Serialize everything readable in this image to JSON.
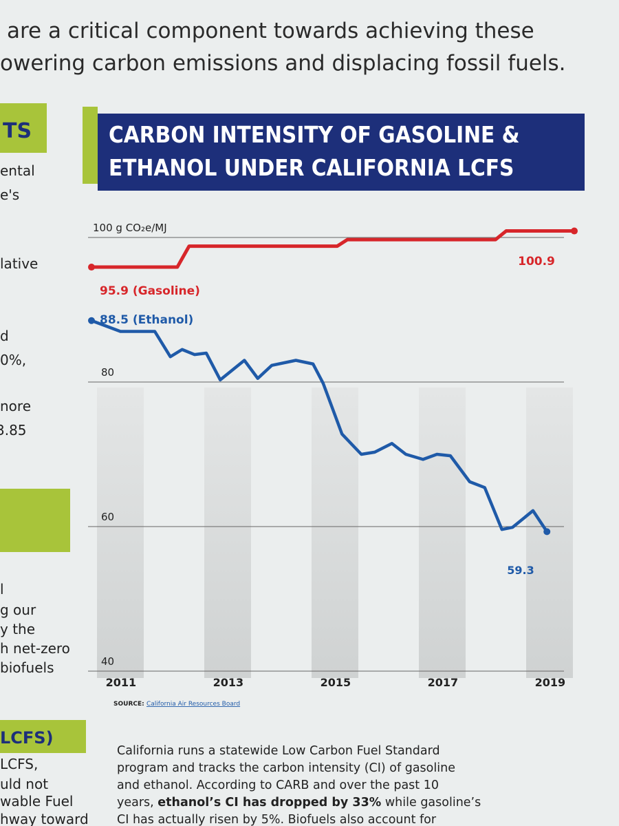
{
  "header": {
    "lines": [
      "are a critical component towards achieving these",
      "owering carbon emissions and displacing fossil fuels."
    ]
  },
  "sidebar": {
    "boxes": [
      "TS",
      "LCFS)"
    ],
    "fragments": [
      "ental",
      "e's",
      "lative",
      "d",
      "0%,",
      "nore",
      "3.85",
      "l",
      "g our",
      "y the",
      "h net-zero",
      "biofuels",
      "LCFS,",
      "uld not",
      "wable Fuel",
      "hway toward"
    ]
  },
  "chart_data": {
    "type": "line",
    "title": [
      "CARBON INTENSITY OF GASOLINE &",
      "ETHANOL UNDER CALIFORNIA LCFS"
    ],
    "series": [
      {
        "name": "Gasoline",
        "color": "#d7262a",
        "x": [
          2011,
          2012.6,
          2012.82,
          2015.58,
          2015.77,
          2018.53,
          2018.73,
          2020
        ],
        "values": [
          95.9,
          95.9,
          98.8,
          98.8,
          99.7,
          99.7,
          100.9,
          100.9
        ]
      },
      {
        "name": "Ethanol",
        "color": "#1f5aa8",
        "x": [
          2011,
          2011.54,
          2012.18,
          2012.47,
          2012.69,
          2012.92,
          2013.14,
          2013.4,
          2013.85,
          2014.1,
          2014.36,
          2014.81,
          2015.13,
          2015.32,
          2015.67,
          2016.03,
          2016.28,
          2016.6,
          2016.86,
          2017.18,
          2017.44,
          2017.69,
          2018.05,
          2018.33,
          2018.65,
          2018.85,
          2019.23,
          2019.49
        ],
        "values": [
          88.5,
          87,
          87,
          83.5,
          84.5,
          83.8,
          84,
          80.3,
          83,
          80.5,
          82.3,
          83,
          82.5,
          79.8,
          72.8,
          70,
          70.3,
          71.5,
          70,
          69.3,
          70,
          69.8,
          66.2,
          65.4,
          59.6,
          59.9,
          62.2,
          59.3
        ]
      }
    ],
    "annotations": [
      "100.9",
      "95.9 (Gasoline)",
      "88.5 (Ethanol)",
      "59.3"
    ],
    "xlim": [
      2011,
      2020
    ],
    "xticks": [
      2011,
      2013,
      2015,
      2017,
      2019
    ],
    "ylim": [
      40,
      100
    ],
    "yticks": [
      40,
      60,
      80,
      {
        "value": 100,
        "label": "100 g CO₂e/MJ"
      }
    ],
    "grid": true,
    "source_label": "SOURCE:",
    "source": "California Air Resources Board"
  },
  "article": {
    "lines": [
      "California runs a statewide Low Carbon Fuel Standard",
      "program and tracks the carbon intensity (CI) of gasoline",
      "and ethanol. According to CARB and over the past 10"
    ],
    "line4": [
      "years, ",
      "ethanol’s CI has dropped by 33%",
      " while gasoline’s"
    ],
    "line5": "CI has actually risen by 5%. Biofuels also account for"
  }
}
